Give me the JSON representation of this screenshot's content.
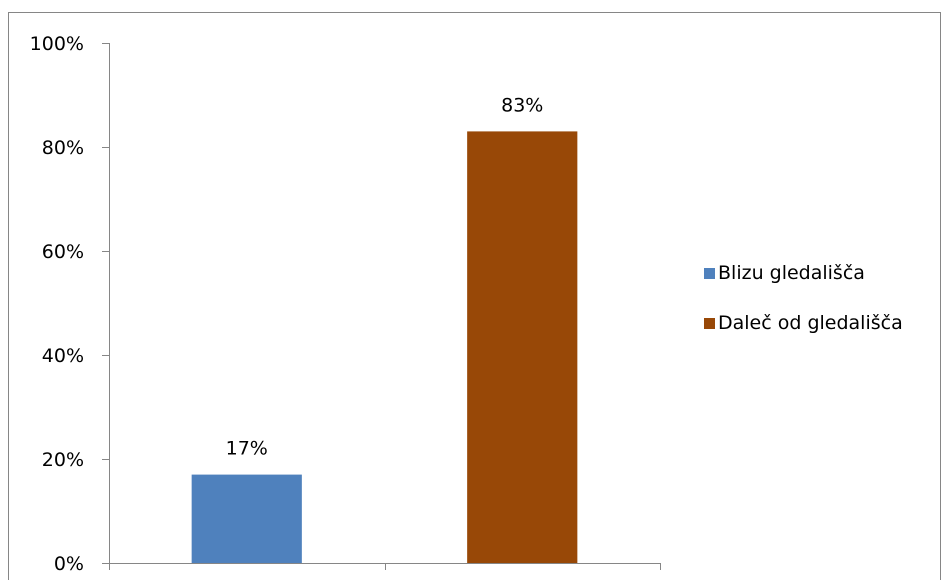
{
  "chart_data": {
    "type": "bar",
    "title": "",
    "xlabel": "",
    "ylabel": "",
    "ylim": [
      0,
      100
    ],
    "yticks": [
      "0%",
      "20%",
      "40%",
      "60%",
      "80%",
      "100%"
    ],
    "ytick_values": [
      0,
      20,
      40,
      60,
      80,
      100
    ],
    "grid": false,
    "legend_position": "right",
    "series": [
      {
        "name": "Blizu gledališča",
        "value": 17,
        "label": "17%",
        "color": "#4F81BD"
      },
      {
        "name": "Daleč od gledališča",
        "value": 83,
        "label": "83%",
        "color": "#984807"
      }
    ]
  }
}
